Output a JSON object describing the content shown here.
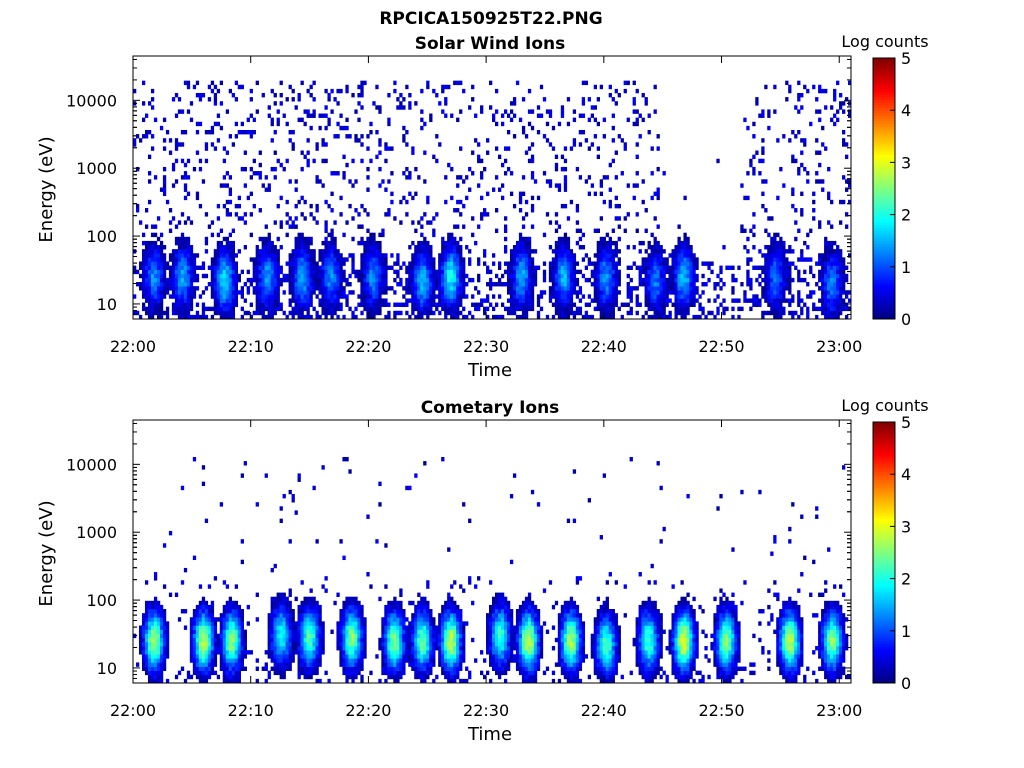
{
  "figure": {
    "title": "RPCICA150925T22.PNG"
  },
  "chart_data": [
    {
      "type": "heatmap",
      "title": "Solar Wind Ions",
      "xlabel": "Time",
      "ylabel": "Energy (eV)",
      "x_range": [
        "22:00",
        "23:01"
      ],
      "x_ticks": [
        "22:00",
        "22:10",
        "22:20",
        "22:30",
        "22:40",
        "22:50",
        "23:00"
      ],
      "y_scale": "log",
      "y_range": [
        6,
        45000
      ],
      "y_ticks": [
        10,
        100,
        1000,
        10000
      ],
      "y_tick_labels": [
        "10",
        "100",
        "1000",
        "10000"
      ],
      "colorbar": {
        "label": "Log counts",
        "range": [
          0,
          5
        ],
        "ticks": [
          "0",
          "1",
          "2",
          "3",
          "4",
          "5"
        ],
        "colormap": "jet"
      },
      "grid": false,
      "description": "sparse low-count (0-1 log counts) noise over 10-30000 eV until ~22:44 and again ~22:52-23:01; periodic bursts at ~20-40 eV reaching 2 log counts",
      "bursts": [
        {
          "t": 22.03,
          "e": 25,
          "v": 1.3
        },
        {
          "t": 22.07,
          "e": 25,
          "v": 1.5
        },
        {
          "t": 22.13,
          "e": 22,
          "v": 1.8
        },
        {
          "t": 22.19,
          "e": 25,
          "v": 1.4
        },
        {
          "t": 22.24,
          "e": 25,
          "v": 1.5
        },
        {
          "t": 22.28,
          "e": 25,
          "v": 1.3
        },
        {
          "t": 22.34,
          "e": 25,
          "v": 1.3
        },
        {
          "t": 22.41,
          "e": 22,
          "v": 1.6
        },
        {
          "t": 22.45,
          "e": 25,
          "v": 1.9
        },
        {
          "t": 22.55,
          "e": 25,
          "v": 1.5
        },
        {
          "t": 22.61,
          "e": 25,
          "v": 1.5
        },
        {
          "t": 22.67,
          "e": 25,
          "v": 1.4
        },
        {
          "t": 22.74,
          "e": 22,
          "v": 1.2
        },
        {
          "t": 22.78,
          "e": 25,
          "v": 1.6
        },
        {
          "t": 22.91,
          "e": 25,
          "v": 1.2
        },
        {
          "t": 22.99,
          "e": 20,
          "v": 1.3
        }
      ]
    },
    {
      "type": "heatmap",
      "title": "Cometary Ions",
      "xlabel": "Time",
      "ylabel": "Energy (eV)",
      "x_range": [
        "22:00",
        "23:01"
      ],
      "x_ticks": [
        "22:00",
        "22:10",
        "22:20",
        "22:30",
        "22:40",
        "22:50",
        "23:00"
      ],
      "y_scale": "log",
      "y_range": [
        6,
        45000
      ],
      "y_ticks": [
        10,
        100,
        1000,
        10000
      ],
      "y_tick_labels": [
        "10",
        "100",
        "1000",
        "10000"
      ],
      "colorbar": {
        "label": "Log counts",
        "range": [
          0,
          5
        ],
        "ticks": [
          "0",
          "1",
          "2",
          "3",
          "4",
          "5"
        ],
        "colormap": "jet"
      },
      "grid": false,
      "description": "periodic bursts of cometary ions centred near 20-30 eV peaking ~3 log counts, scattered single counts up to ~10000 eV",
      "bursts": [
        {
          "t": 22.03,
          "e": 25,
          "v": 2.8
        },
        {
          "t": 22.1,
          "e": 25,
          "v": 2.9
        },
        {
          "t": 22.14,
          "e": 25,
          "v": 2.6
        },
        {
          "t": 22.21,
          "e": 30,
          "v": 2.0
        },
        {
          "t": 22.25,
          "e": 28,
          "v": 2.3
        },
        {
          "t": 22.31,
          "e": 28,
          "v": 2.6
        },
        {
          "t": 22.37,
          "e": 25,
          "v": 2.6
        },
        {
          "t": 22.41,
          "e": 25,
          "v": 2.4
        },
        {
          "t": 22.45,
          "e": 25,
          "v": 2.9
        },
        {
          "t": 22.52,
          "e": 30,
          "v": 2.2
        },
        {
          "t": 22.56,
          "e": 25,
          "v": 2.9
        },
        {
          "t": 22.62,
          "e": 25,
          "v": 2.8
        },
        {
          "t": 22.67,
          "e": 22,
          "v": 2.3
        },
        {
          "t": 22.73,
          "e": 25,
          "v": 2.2
        },
        {
          "t": 22.78,
          "e": 25,
          "v": 3.1
        },
        {
          "t": 22.84,
          "e": 25,
          "v": 2.6
        },
        {
          "t": 22.93,
          "e": 25,
          "v": 2.9
        },
        {
          "t": 22.99,
          "e": 25,
          "v": 2.6
        }
      ]
    }
  ]
}
